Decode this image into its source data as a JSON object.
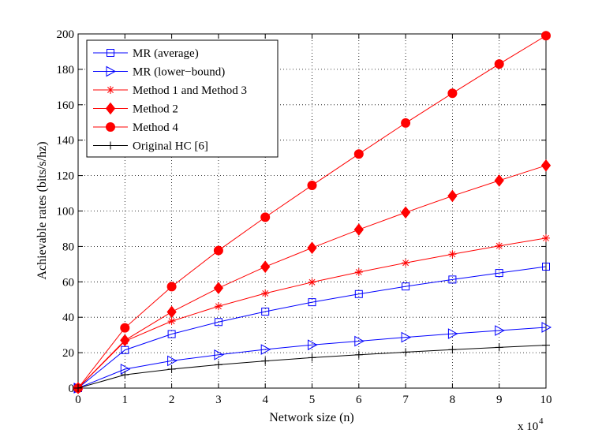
{
  "chart_data": {
    "type": "line",
    "title": "",
    "xlabel": "Network size (n)",
    "ylabel": "Achievable rates (bits/s/hz)",
    "x_scale_note": {
      "base": "x 10",
      "exponent": "4"
    },
    "x": [
      0,
      1,
      2,
      3,
      4,
      5,
      6,
      7,
      8,
      9,
      10
    ],
    "x_ticks": [
      0,
      1,
      2,
      3,
      4,
      5,
      6,
      7,
      8,
      9,
      10
    ],
    "y_ticks": [
      0,
      20,
      40,
      60,
      80,
      100,
      120,
      140,
      160,
      180,
      200
    ],
    "xlim": [
      0,
      10
    ],
    "ylim": [
      0,
      200
    ],
    "grid": true,
    "legend_position": "top-left",
    "series": [
      {
        "name": "MR (average)",
        "color": "#0000ff",
        "marker": "square",
        "values": [
          0,
          21.5,
          30.5,
          37.3,
          43.2,
          48.5,
          53.1,
          57.4,
          61.3,
          65.0,
          68.6
        ]
      },
      {
        "name": "MR (lower−bound)",
        "color": "#0000ff",
        "marker": "triangle-right",
        "values": [
          0,
          10.7,
          15.4,
          18.8,
          21.8,
          24.4,
          26.5,
          28.7,
          30.7,
          32.5,
          34.3
        ]
      },
      {
        "name": "Method 1 and Method 3",
        "color": "#ff0000",
        "marker": "asterisk",
        "values": [
          0,
          26.5,
          37.8,
          46.2,
          53.5,
          59.8,
          65.5,
          70.7,
          75.6,
          80.3,
          84.7
        ]
      },
      {
        "name": "Method 2",
        "color": "#ff0000",
        "marker": "diamond-filled",
        "values": [
          0,
          27.0,
          43.0,
          56.5,
          68.5,
          79.2,
          89.5,
          99.2,
          108.5,
          117.2,
          125.7
        ]
      },
      {
        "name": "Method 4",
        "color": "#ff0000",
        "marker": "circle-filled",
        "values": [
          0,
          34.0,
          57.3,
          77.7,
          96.5,
          114.5,
          132.2,
          149.7,
          166.5,
          183.0,
          199.0
        ]
      },
      {
        "name": "Original HC [6]",
        "color": "#000000",
        "marker": "plus",
        "values": [
          0,
          7.5,
          10.7,
          13.2,
          15.3,
          17.2,
          18.8,
          20.3,
          21.7,
          23.0,
          24.2
        ]
      }
    ]
  }
}
